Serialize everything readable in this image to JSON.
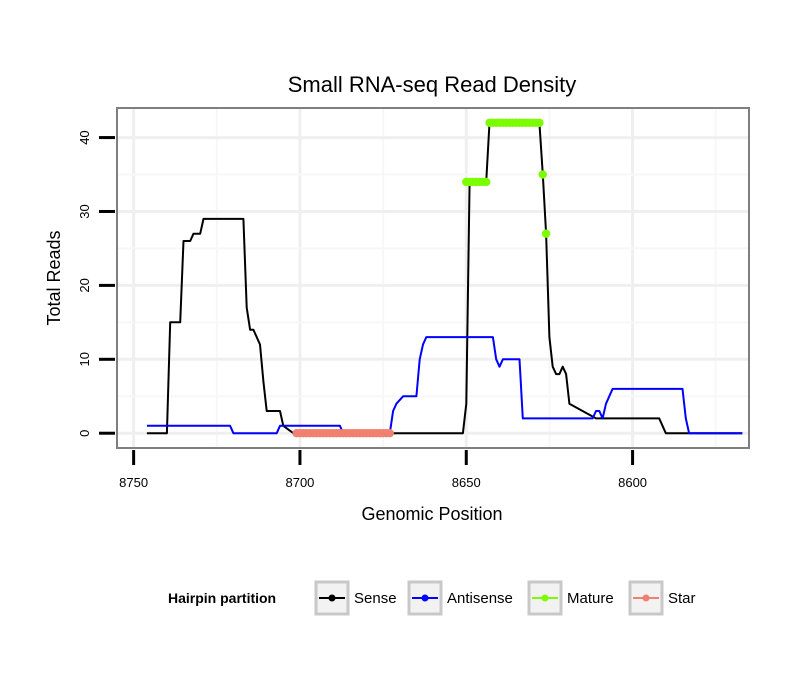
{
  "chart_data": {
    "type": "line",
    "title": "Small RNA-seq Read Density",
    "xlabel": "Genomic Position",
    "ylabel": "Total Reads",
    "xlim": [
      8755,
      8565
    ],
    "x_reversed": true,
    "ylim": [
      -2,
      44
    ],
    "x_ticks": [
      8750,
      8700,
      8650,
      8600
    ],
    "y_ticks": [
      0,
      10,
      20,
      30,
      40
    ],
    "grid": true,
    "legend": {
      "title": "Hairpin partition",
      "position": "bottom",
      "entries": [
        {
          "name": "Sense",
          "color": "#000000"
        },
        {
          "name": "Antisense",
          "color": "#0000ff"
        },
        {
          "name": "Mature",
          "color": "#7cfc00"
        },
        {
          "name": "Star",
          "color": "#f08070"
        }
      ]
    },
    "series": [
      {
        "name": "Sense",
        "color": "#000000",
        "x": [
          8746,
          8740,
          8739,
          8736,
          8735,
          8733,
          8732,
          8730,
          8729,
          8717,
          8716,
          8715,
          8714,
          8712,
          8711,
          8710,
          8709,
          8706,
          8705,
          8702,
          8701,
          8651,
          8650,
          8649,
          8644,
          8643,
          8628,
          8627,
          8626,
          8625,
          8624,
          8623,
          8622,
          8621,
          8620,
          8619,
          8611,
          8610,
          8599,
          8592,
          8590,
          8567
        ],
        "values": [
          0,
          0,
          15,
          15,
          26,
          26,
          27,
          27,
          29,
          29,
          17,
          14,
          14,
          12,
          7,
          3,
          3,
          3,
          1,
          0,
          0,
          0,
          4,
          34,
          34,
          42,
          42,
          35,
          27,
          13,
          9,
          8,
          8,
          9,
          8,
          4,
          2,
          2,
          2,
          2,
          0,
          0
        ]
      },
      {
        "name": "Antisense",
        "color": "#0000ff",
        "x": [
          8746,
          8721,
          8720,
          8707,
          8706,
          8688,
          8687,
          8674,
          8673,
          8672,
          8671,
          8669,
          8667,
          8665,
          8664,
          8663,
          8662,
          8642,
          8641,
          8640,
          8639,
          8634,
          8633,
          8613,
          8612,
          8611,
          8610,
          8609,
          8608,
          8606,
          8585,
          8584,
          8583,
          8567
        ],
        "values": [
          1,
          1,
          0,
          0,
          1,
          1,
          0,
          0,
          0,
          3,
          4,
          5,
          5,
          5,
          10,
          12,
          13,
          13,
          10,
          9,
          10,
          10,
          2,
          2,
          2,
          3,
          3,
          2,
          4,
          6,
          6,
          2,
          0,
          0
        ]
      },
      {
        "name": "Mature",
        "color": "#7cfc00",
        "style": "points",
        "x": [
          8650,
          8649,
          8648,
          8647,
          8646,
          8645,
          8644,
          8643,
          8642,
          8641,
          8640,
          8639,
          8638,
          8637,
          8636,
          8635,
          8634,
          8633,
          8632,
          8631,
          8630,
          8629,
          8628,
          8627,
          8626
        ],
        "values": [
          34,
          34,
          34,
          34,
          34,
          34,
          34,
          42,
          42,
          42,
          42,
          42,
          42,
          42,
          42,
          42,
          42,
          42,
          42,
          42,
          42,
          42,
          42,
          35,
          27
        ]
      },
      {
        "name": "Star",
        "color": "#f08070",
        "style": "points",
        "x": [
          8701,
          8700,
          8699,
          8698,
          8697,
          8696,
          8695,
          8694,
          8693,
          8692,
          8691,
          8690,
          8689,
          8688,
          8687,
          8686,
          8685,
          8684,
          8683,
          8682,
          8681,
          8680,
          8679,
          8678,
          8677,
          8676,
          8675,
          8674,
          8673
        ],
        "values": [
          0,
          0,
          0,
          0,
          0,
          0,
          0,
          0,
          0,
          0,
          0,
          0,
          0,
          0,
          0,
          0,
          0,
          0,
          0,
          0,
          0,
          0,
          0,
          0,
          0,
          0,
          0,
          0,
          0
        ]
      }
    ]
  }
}
